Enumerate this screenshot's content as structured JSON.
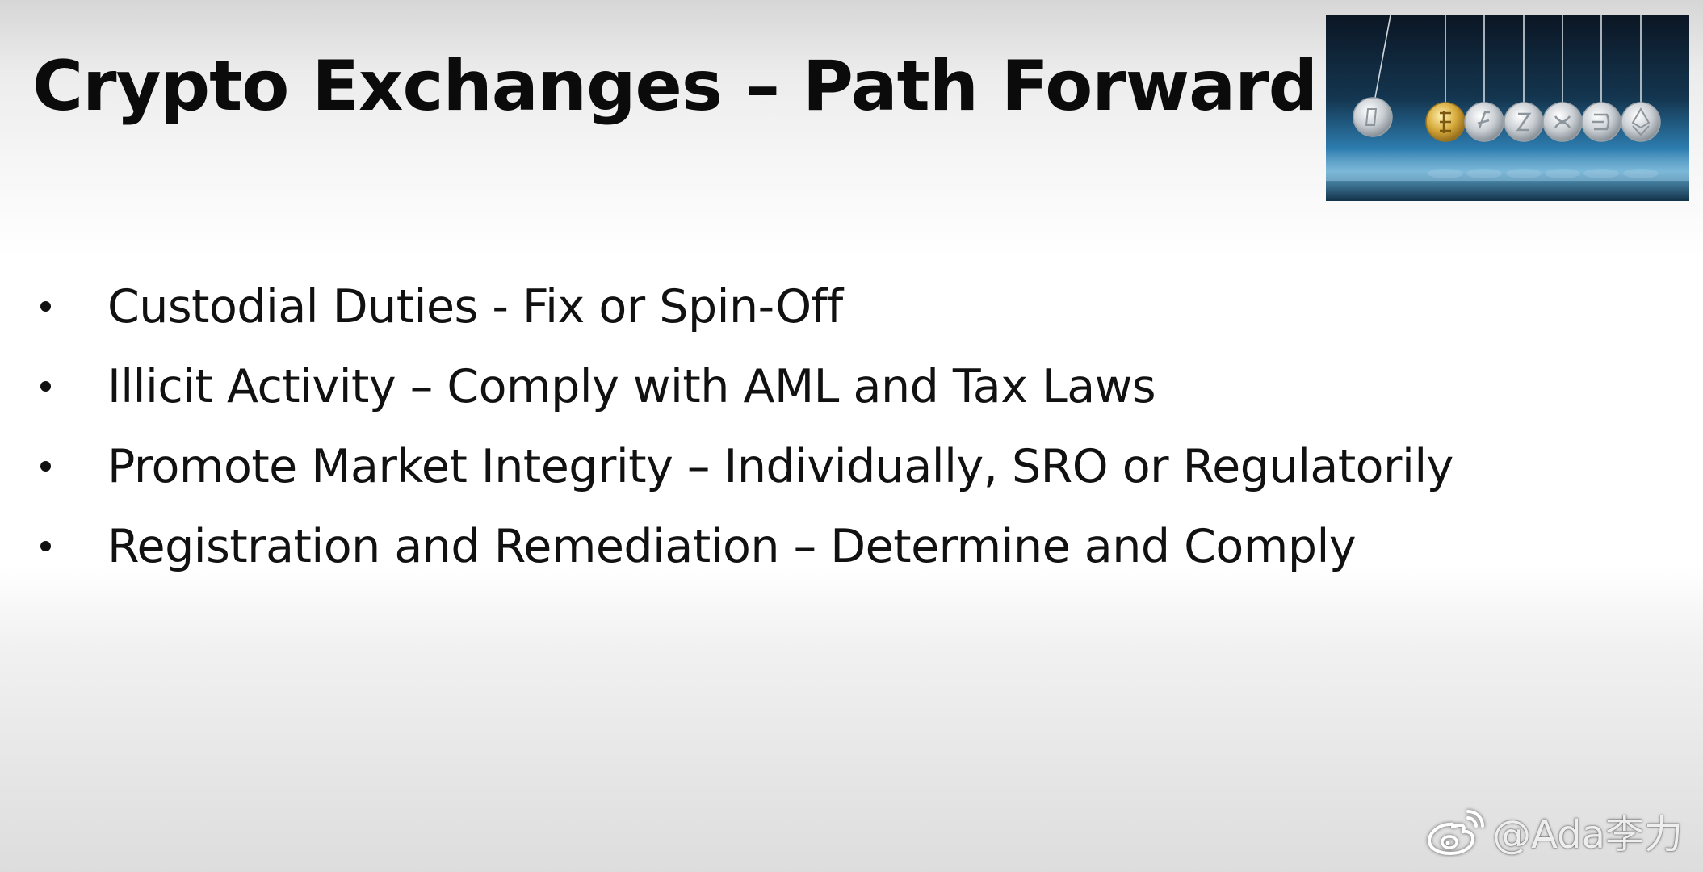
{
  "slide": {
    "title": "Crypto Exchanges – Path Forward",
    "bullets": [
      "Custodial Duties - Fix or Spin-Off",
      "Illicit Activity – Comply with AML and Tax Laws",
      "Promote Market Integrity – Individually, SRO or Regulatorily",
      "Registration and Remediation – Determine and Comply"
    ],
    "image_icon": "newtons-cradle-crypto-coins-icon"
  },
  "watermark": {
    "icon": "weibo-icon",
    "text": "@Ada李力"
  }
}
